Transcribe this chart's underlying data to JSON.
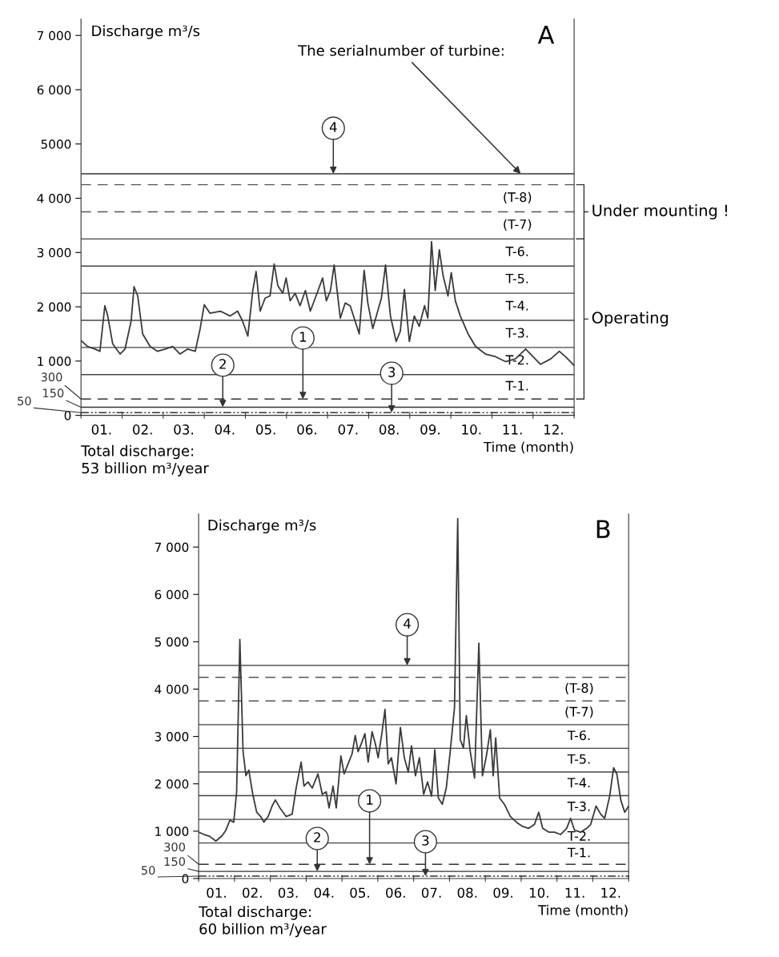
{
  "chart_data": [
    {
      "type": "line",
      "title": "A",
      "ylabel": "Discharge m³/s",
      "xlabel": "Time (month)",
      "xlim": [
        0,
        12
      ],
      "ylim": [
        0,
        7300
      ],
      "xticks": [
        {
          "value": 0,
          "label": null
        },
        {
          "value": 1,
          "label": null
        },
        {
          "value": 2,
          "label": null
        },
        {
          "value": 3,
          "label": null
        },
        {
          "value": 4,
          "label": null
        },
        {
          "value": 5,
          "label": null
        },
        {
          "value": 6,
          "label": null
        },
        {
          "value": 7,
          "label": null
        },
        {
          "value": 8,
          "label": null
        },
        {
          "value": 9,
          "label": null
        },
        {
          "value": 10,
          "label": null
        },
        {
          "value": 11,
          "label": null
        },
        {
          "value": 12,
          "label": null
        },
        {
          "value": 0.5,
          "label": "01."
        },
        {
          "value": 1.5,
          "label": "02."
        },
        {
          "value": 2.5,
          "label": "03."
        },
        {
          "value": 3.5,
          "label": "04."
        },
        {
          "value": 4.5,
          "label": "05."
        },
        {
          "value": 5.5,
          "label": "06."
        },
        {
          "value": 6.5,
          "label": "07."
        },
        {
          "value": 7.5,
          "label": "08."
        },
        {
          "value": 8.5,
          "label": "09."
        },
        {
          "value": 9.5,
          "label": "10."
        },
        {
          "value": 10.5,
          "label": "11."
        },
        {
          "value": 11.5,
          "label": "12."
        }
      ],
      "yticks": [
        0,
        {
          "value": 1000,
          "label": "1 000"
        },
        {
          "value": 2000,
          "label": "2 000"
        },
        {
          "value": 3000,
          "label": "3 000"
        },
        {
          "value": 4000,
          "label": "4 000"
        },
        5000,
        {
          "value": 6000,
          "label": "6 000"
        },
        {
          "value": 7000,
          "label": "7 000"
        }
      ],
      "series": [
        {
          "color": "#3a3a3a",
          "x": [
            0.0,
            0.16,
            0.34,
            0.46,
            0.58,
            0.65,
            0.77,
            0.95,
            1.07,
            1.22,
            1.29,
            1.38,
            1.5,
            1.68,
            1.86,
            2.05,
            2.23,
            2.41,
            2.59,
            2.78,
            2.9,
            3.0,
            3.14,
            3.39,
            3.63,
            3.81,
            3.93,
            4.06,
            4.18,
            4.26,
            4.36,
            4.48,
            4.6,
            4.7,
            4.79,
            4.91,
            4.99,
            5.09,
            5.21,
            5.33,
            5.46,
            5.58,
            5.7,
            5.88,
            5.97,
            6.07,
            6.16,
            6.31,
            6.43,
            6.55,
            6.67,
            6.77,
            6.89,
            6.98,
            7.1,
            7.22,
            7.31,
            7.41,
            7.53,
            7.67,
            7.77,
            7.87,
            7.99,
            8.11,
            8.23,
            8.36,
            8.44,
            8.53,
            8.62,
            8.72,
            8.81,
            8.93,
            9.01,
            9.11,
            9.23,
            9.42,
            9.6,
            9.84,
            10.09,
            10.33,
            10.57,
            10.82,
            11.0,
            11.18,
            11.43,
            11.64,
            11.79,
            12.0
          ],
          "values": [
            1380,
            1270,
            1220,
            1180,
            2020,
            1830,
            1320,
            1130,
            1220,
            1740,
            2370,
            2200,
            1500,
            1270,
            1180,
            1220,
            1270,
            1130,
            1220,
            1180,
            1600,
            2040,
            1880,
            1920,
            1830,
            1920,
            1740,
            1460,
            2300,
            2650,
            1920,
            2160,
            2200,
            2790,
            2390,
            2250,
            2530,
            2110,
            2250,
            2020,
            2300,
            1920,
            2160,
            2530,
            2110,
            2300,
            2770,
            1790,
            2070,
            2020,
            1740,
            1500,
            2670,
            2070,
            1600,
            1920,
            2160,
            2770,
            1830,
            1360,
            1550,
            2320,
            1360,
            1830,
            1640,
            2020,
            1790,
            3200,
            2300,
            3050,
            2580,
            2200,
            2630,
            2110,
            1830,
            1500,
            1270,
            1130,
            1080,
            990,
            1040,
            1220,
            1080,
            940,
            1040,
            1180,
            1080,
            920
          ]
        }
      ],
      "ref_lines": [
        {
          "axis": "y",
          "value": 50,
          "label": "50",
          "line_style": "dotted",
          "color": "#333333"
        },
        {
          "axis": "y",
          "value": 150,
          "label": "150",
          "line_style": "solid",
          "color": "#333333"
        },
        {
          "axis": "y",
          "value": 300,
          "label": "300",
          "line_style": "dashed",
          "color": "#333333"
        },
        {
          "axis": "y",
          "value": 750,
          "line_style": "solid",
          "color": "#444444"
        },
        {
          "axis": "y",
          "value": 1250,
          "line_style": "solid",
          "color": "#444444"
        },
        {
          "axis": "y",
          "value": 1750,
          "line_style": "solid",
          "color": "#444444"
        },
        {
          "axis": "y",
          "value": 2250,
          "line_style": "solid",
          "color": "#444444"
        },
        {
          "axis": "y",
          "value": 2750,
          "line_style": "solid",
          "color": "#444444"
        },
        {
          "axis": "y",
          "value": 3250,
          "line_style": "solid",
          "color": "#444444"
        },
        {
          "axis": "y",
          "value": 3750,
          "line_style": "dashed",
          "color": "#555555"
        },
        {
          "axis": "y",
          "value": 4250,
          "line_style": "dashed",
          "color": "#555555"
        },
        {
          "axis": "y",
          "value": 4450,
          "line_style": "solid",
          "color": "#333333"
        }
      ],
      "annotations": [
        {
          "text": "The serialnumber of turbine:",
          "x": 10.7,
          "y": 4450
        },
        {
          "text": "4",
          "x": 6.14,
          "y": 4450
        },
        {
          "text": "1",
          "x": 5.4,
          "y": 300
        },
        {
          "text": "2",
          "x": 3.45,
          "y": 150
        },
        {
          "text": "3",
          "x": 7.56,
          "y": 50
        },
        "T-1.",
        "T-2.",
        "T-3.",
        "T-4.",
        "T-5.",
        "T-6.",
        "(T-7)",
        "(T-8)",
        "Under mounting !",
        "Operating",
        "Total discharge:\n53 billion m³/year"
      ]
    },
    {
      "type": "line",
      "title": "B",
      "ylabel": "Discharge m³/s",
      "xlabel": "Time (month)",
      "xlim": [
        0,
        12
      ],
      "ylim": [
        0,
        7700
      ],
      "xticks": [
        {
          "value": 0,
          "label": null
        },
        {
          "value": 1,
          "label": null
        },
        {
          "value": 2,
          "label": null
        },
        {
          "value": 3,
          "label": null
        },
        {
          "value": 4,
          "label": null
        },
        {
          "value": 5,
          "label": null
        },
        {
          "value": 6,
          "label": null
        },
        {
          "value": 7,
          "label": null
        },
        {
          "value": 8,
          "label": null
        },
        {
          "value": 9,
          "label": null
        },
        {
          "value": 10,
          "label": null
        },
        {
          "value": 11,
          "label": null
        },
        {
          "value": 12,
          "label": null
        },
        {
          "value": 0.5,
          "label": "01."
        },
        {
          "value": 1.5,
          "label": "02."
        },
        {
          "value": 2.5,
          "label": "03."
        },
        {
          "value": 3.5,
          "label": "04."
        },
        {
          "value": 4.5,
          "label": "05."
        },
        {
          "value": 5.5,
          "label": "06."
        },
        {
          "value": 6.5,
          "label": "07."
        },
        {
          "value": 7.5,
          "label": "08."
        },
        {
          "value": 8.5,
          "label": "09."
        },
        {
          "value": 9.5,
          "label": "10."
        },
        {
          "value": 10.5,
          "label": "11."
        },
        {
          "value": 11.5,
          "label": "12."
        }
      ],
      "yticks": [
        0,
        {
          "value": 1000,
          "label": "1 000"
        },
        {
          "value": 2000,
          "label": "2 000"
        },
        {
          "value": 3000,
          "label": "3 000"
        },
        {
          "value": 4000,
          "label": "4 000"
        },
        {
          "value": 5000,
          "label": "5 000"
        },
        {
          "value": 6000,
          "label": "6 000"
        },
        {
          "value": 7000,
          "label": "7 000"
        }
      ],
      "series": [
        {
          "color": "#3a3a3a",
          "x": [
            0,
            0.15,
            0.31,
            0.48,
            0.65,
            0.76,
            0.87,
            0.98,
            1.06,
            1.15,
            1.24,
            1.32,
            1.4,
            1.51,
            1.62,
            1.73,
            1.82,
            1.94,
            2.05,
            2.14,
            2.27,
            2.44,
            2.61,
            2.72,
            2.86,
            2.94,
            3.05,
            3.17,
            3.33,
            3.45,
            3.56,
            3.64,
            3.75,
            3.84,
            3.97,
            4.06,
            4.17,
            4.28,
            4.37,
            4.45,
            4.56,
            4.64,
            4.73,
            4.84,
            4.93,
            5.01,
            5.12,
            5.2,
            5.29,
            5.38,
            5.51,
            5.63,
            5.74,
            5.85,
            5.94,
            6.05,
            6.16,
            6.28,
            6.39,
            6.5,
            6.59,
            6.69,
            6.8,
            6.91,
            7.02,
            7.14,
            7.23,
            7.3,
            7.39,
            7.47,
            7.58,
            7.7,
            7.82,
            7.92,
            8.03,
            8.14,
            8.22,
            8.29,
            8.4,
            8.53,
            8.7,
            8.87,
            9.04,
            9.21,
            9.37,
            9.49,
            9.6,
            9.77,
            9.93,
            10.1,
            10.27,
            10.38,
            10.49,
            10.66,
            10.83,
            10.94,
            11.09,
            11.22,
            11.33,
            11.47,
            11.58,
            11.67,
            11.78,
            11.89,
            12.0
          ],
          "values": [
            980,
            930,
            890,
            790,
            900,
            1020,
            1230,
            1190,
            1830,
            5050,
            2680,
            2170,
            2290,
            1780,
            1400,
            1310,
            1190,
            1310,
            1530,
            1660,
            1490,
            1310,
            1360,
            1910,
            2460,
            1950,
            2040,
            1910,
            2210,
            1780,
            1830,
            1490,
            1950,
            1490,
            2590,
            2210,
            2420,
            2630,
            3020,
            2680,
            2890,
            3060,
            2460,
            3100,
            2850,
            2550,
            3100,
            3570,
            2420,
            2550,
            2000,
            3190,
            2550,
            2250,
            2800,
            2170,
            2550,
            1780,
            2040,
            1740,
            2720,
            1700,
            1570,
            1910,
            2680,
            3610,
            7600,
            2930,
            2760,
            3440,
            2680,
            2120,
            4970,
            2170,
            2590,
            3140,
            2170,
            2970,
            1700,
            1570,
            1310,
            1190,
            1100,
            1060,
            1140,
            1400,
            1060,
            980,
            980,
            930,
            1060,
            1270,
            1020,
            980,
            1060,
            1140,
            1530,
            1360,
            1270,
            1740,
            2340,
            2210,
            1660,
            1400,
            1530
          ]
        }
      ],
      "ref_lines": [
        {
          "axis": "y",
          "value": 50,
          "label": "50",
          "line_style": "dotted",
          "color": "#333333"
        },
        {
          "axis": "y",
          "value": 150,
          "label": "150",
          "line_style": "solid",
          "color": "#333333"
        },
        {
          "axis": "y",
          "value": 300,
          "label": "300",
          "line_style": "dashed",
          "color": "#333333"
        },
        {
          "axis": "y",
          "value": 750,
          "line_style": "solid",
          "color": "#444444"
        },
        {
          "axis": "y",
          "value": 1250,
          "line_style": "solid",
          "color": "#444444"
        },
        {
          "axis": "y",
          "value": 1750,
          "line_style": "solid",
          "color": "#444444"
        },
        {
          "axis": "y",
          "value": 2250,
          "line_style": "solid",
          "color": "#444444"
        },
        {
          "axis": "y",
          "value": 2750,
          "line_style": "solid",
          "color": "#444444"
        },
        {
          "axis": "y",
          "value": 3250,
          "line_style": "solid",
          "color": "#444444"
        },
        {
          "axis": "y",
          "value": 3750,
          "line_style": "dashed",
          "color": "#555555"
        },
        {
          "axis": "y",
          "value": 4250,
          "line_style": "dashed",
          "color": "#555555"
        },
        {
          "axis": "y",
          "value": 4500,
          "line_style": "solid",
          "color": "#333333"
        }
      ],
      "annotations": [
        {
          "text": "4",
          "x": 5.82,
          "y": 4500
        },
        {
          "text": "1",
          "x": 4.77,
          "y": 300
        },
        {
          "text": "2",
          "x": 3.31,
          "y": 150
        },
        {
          "text": "3",
          "x": 6.33,
          "y": 50
        },
        "T-1.",
        "T-2.",
        "T-3.",
        "T-4.",
        "T-5.",
        "T-6.",
        "(T-7)",
        "(T-8)",
        "Total discharge:\n60 billion m³/year"
      ]
    }
  ]
}
